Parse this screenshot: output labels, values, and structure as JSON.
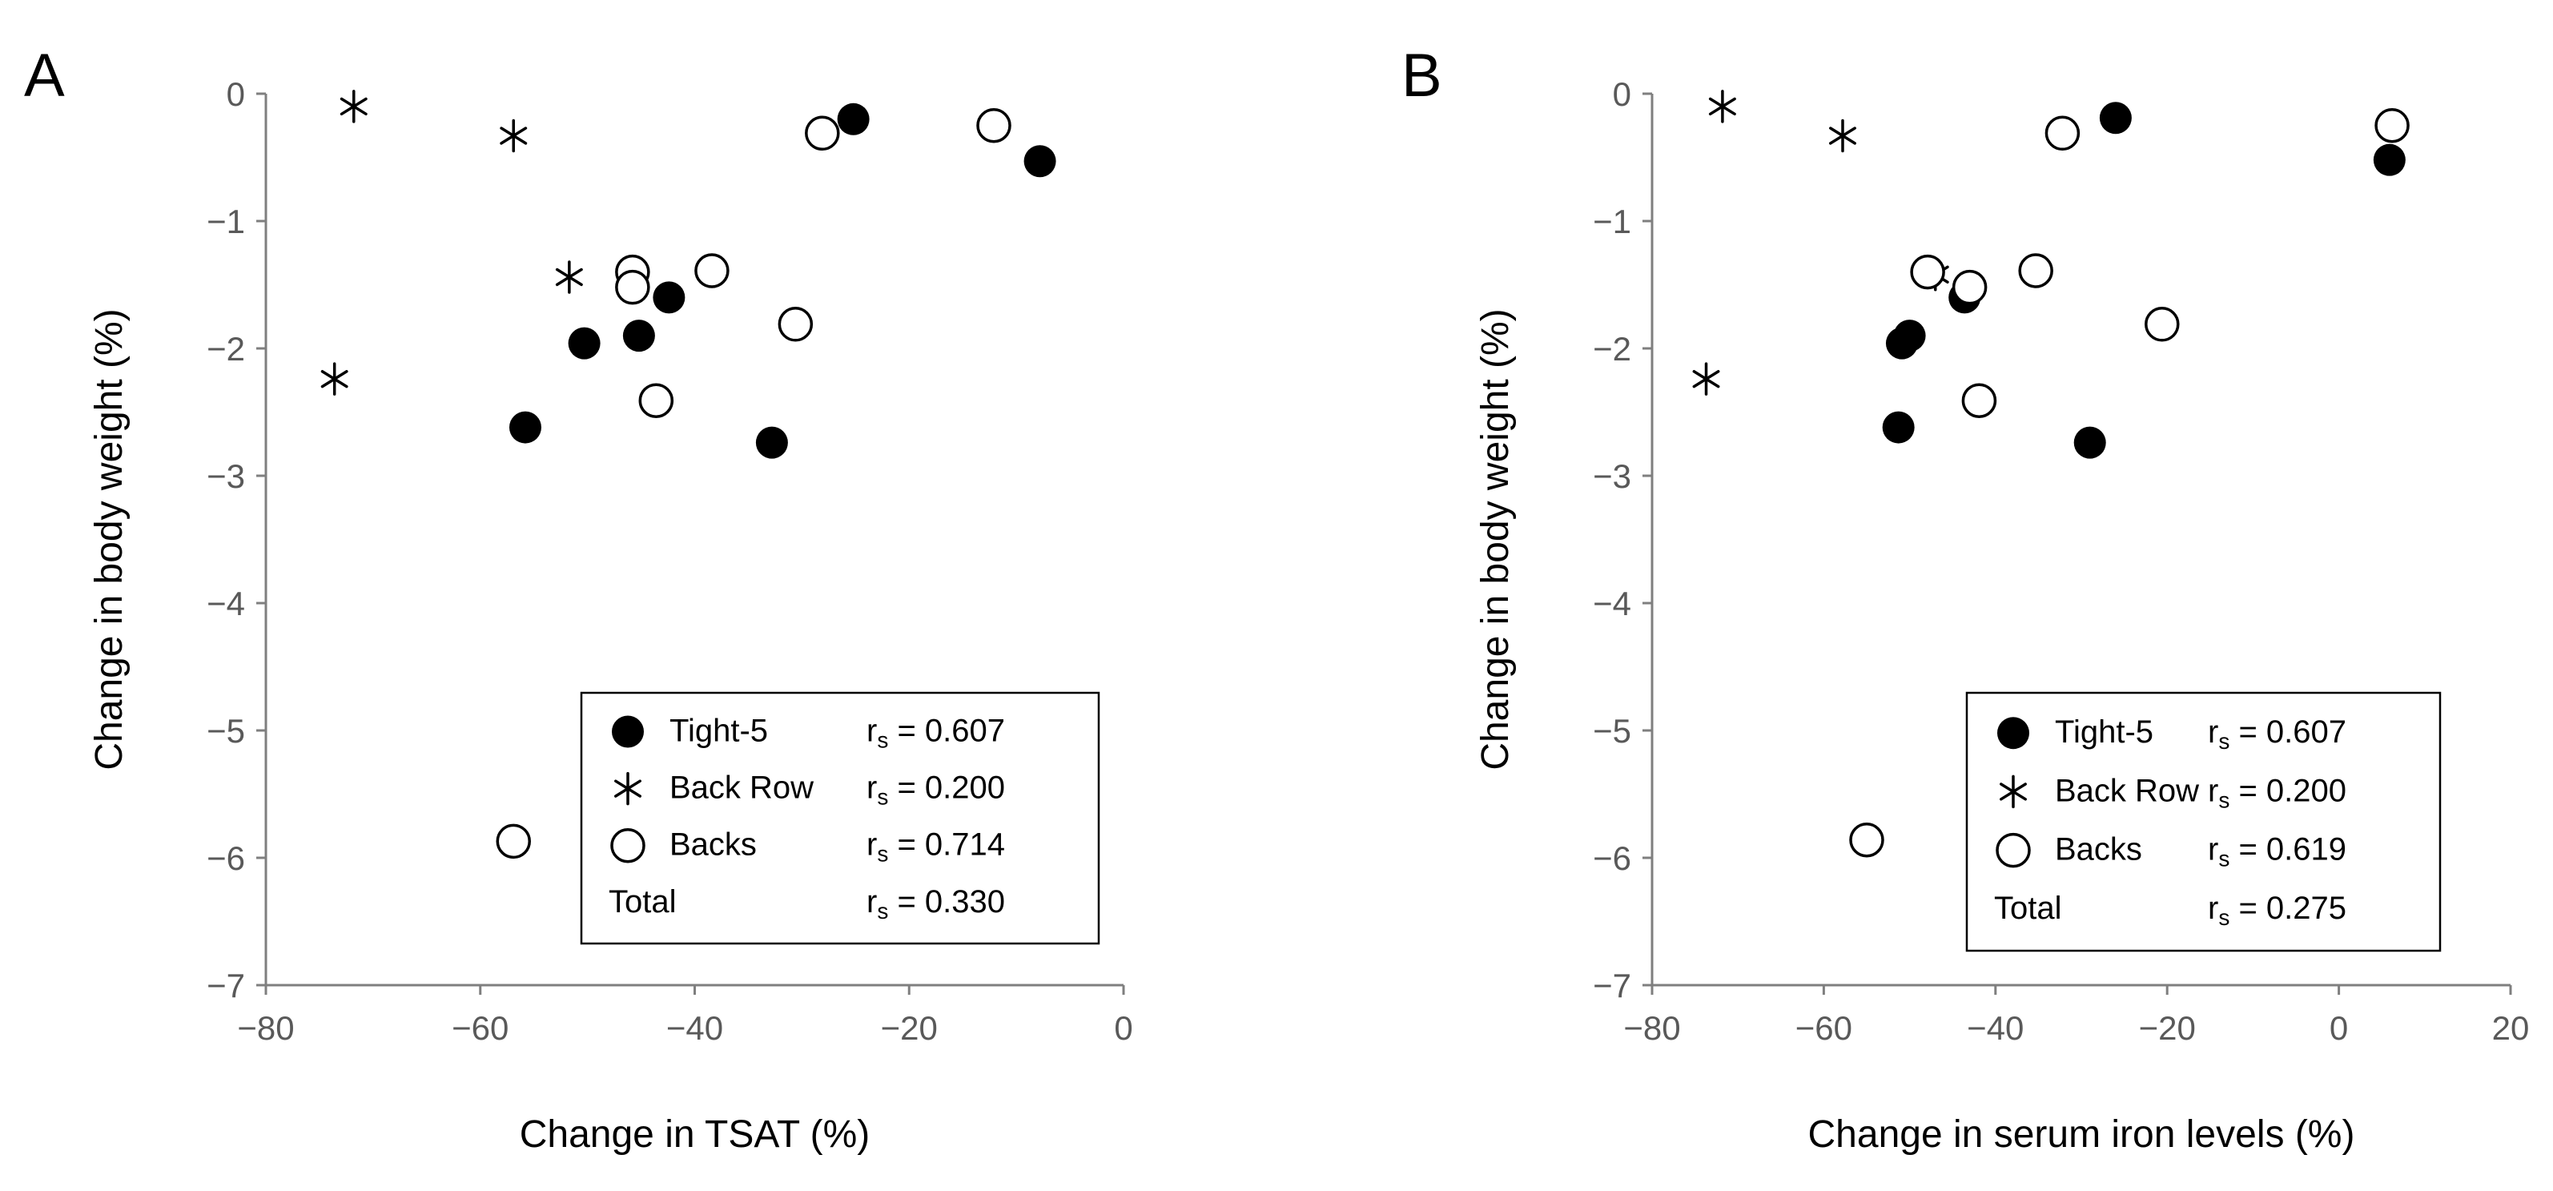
{
  "chart_data": [
    {
      "type": "scatter",
      "panel_label": "A",
      "title": "",
      "xlabel": "Change in TSAT (%)",
      "ylabel": "Change in body weight (%)",
      "xlim": [
        -80,
        0
      ],
      "ylim": [
        -7,
        0
      ],
      "xticks": [
        -80,
        -60,
        -40,
        -20,
        0
      ],
      "yticks": [
        0,
        -1,
        -2,
        -3,
        -4,
        -5,
        -6,
        -7
      ],
      "xtick_labels": [
        "−80",
        "−60",
        "−40",
        "−20",
        "0"
      ],
      "ytick_labels": [
        "0",
        "−1",
        "−2",
        "−3",
        "−4",
        "−5",
        "−6",
        "−7"
      ],
      "grid": false,
      "legend_position": "bottom-right",
      "series": [
        {
          "name": "Tight-5",
          "marker": "filled-circle",
          "rs_label": "r",
          "rs_sub": "s",
          "rs_value": " = 0.607",
          "points": [
            [
              -25.2,
              -0.2
            ],
            [
              -7.8,
              -0.53
            ],
            [
              -42.4,
              -1.6
            ],
            [
              -50.3,
              -1.96
            ],
            [
              -45.2,
              -1.9
            ],
            [
              -55.8,
              -2.62
            ],
            [
              -32.8,
              -2.74
            ]
          ]
        },
        {
          "name": "Back Row",
          "marker": "asterisk",
          "rs_label": "r",
          "rs_sub": "s",
          "rs_value": " = 0.200",
          "points": [
            [
              -71.8,
              -0.1
            ],
            [
              -56.9,
              -0.33
            ],
            [
              -51.7,
              -1.44
            ],
            [
              -73.6,
              -2.24
            ]
          ]
        },
        {
          "name": "Backs",
          "marker": "open-circle",
          "rs_label": "r",
          "rs_sub": "s",
          "rs_value": " = 0.714",
          "points": [
            [
              -28.1,
              -0.31
            ],
            [
              -12.1,
              -0.25
            ],
            [
              -45.8,
              -1.4
            ],
            [
              -45.8,
              -1.52
            ],
            [
              -38.4,
              -1.39
            ],
            [
              -30.6,
              -1.81
            ],
            [
              -43.6,
              -2.41
            ],
            [
              -56.9,
              -5.87
            ]
          ]
        }
      ],
      "total": {
        "name": "Total",
        "rs_label": "r",
        "rs_sub": "s",
        "rs_value": " = 0.330"
      }
    },
    {
      "type": "scatter",
      "panel_label": "B",
      "title": "",
      "xlabel": "Change in serum iron levels (%)",
      "ylabel": "Change in body weight (%)",
      "xlim": [
        -80,
        20
      ],
      "ylim": [
        -7,
        0
      ],
      "xticks": [
        -80,
        -60,
        -40,
        -20,
        0,
        20
      ],
      "yticks": [
        0,
        -1,
        -2,
        -3,
        -4,
        -5,
        -6,
        -7
      ],
      "xtick_labels": [
        "−80",
        "−60",
        "−40",
        "−20",
        "0",
        "20"
      ],
      "ytick_labels": [
        "0",
        "−1",
        "−2",
        "−3",
        "−4",
        "−5",
        "−6",
        "−7"
      ],
      "grid": false,
      "legend_position": "bottom-right",
      "series": [
        {
          "name": "Tight-5",
          "marker": "filled-circle",
          "rs_label": "r",
          "rs_sub": "s",
          "rs_value": " = 0.607",
          "points": [
            [
              -26.0,
              -0.19
            ],
            [
              5.9,
              -0.52
            ],
            [
              -43.6,
              -1.6
            ],
            [
              -50.9,
              -1.96
            ],
            [
              -50.0,
              -1.9
            ],
            [
              -51.3,
              -2.62
            ],
            [
              -29.0,
              -2.74
            ]
          ]
        },
        {
          "name": "Back Row",
          "marker": "asterisk",
          "rs_label": "r",
          "rs_sub": "s",
          "rs_value": " = 0.200",
          "points": [
            [
              -71.8,
              -0.1
            ],
            [
              -57.8,
              -0.33
            ],
            [
              -47.0,
              -1.42
            ],
            [
              -73.7,
              -2.24
            ]
          ]
        },
        {
          "name": "Backs",
          "marker": "open-circle",
          "rs_label": "r",
          "rs_sub": "s",
          "rs_value": " = 0.619",
          "points": [
            [
              -32.2,
              -0.31
            ],
            [
              6.2,
              -0.25
            ],
            [
              -47.9,
              -1.4
            ],
            [
              -43.0,
              -1.52
            ],
            [
              -35.3,
              -1.39
            ],
            [
              -20.6,
              -1.81
            ],
            [
              -41.9,
              -2.41
            ],
            [
              -55.0,
              -5.86
            ]
          ]
        }
      ],
      "total": {
        "name": "Total",
        "rs_label": "r",
        "rs_sub": "s",
        "rs_value": " = 0.275"
      }
    }
  ]
}
